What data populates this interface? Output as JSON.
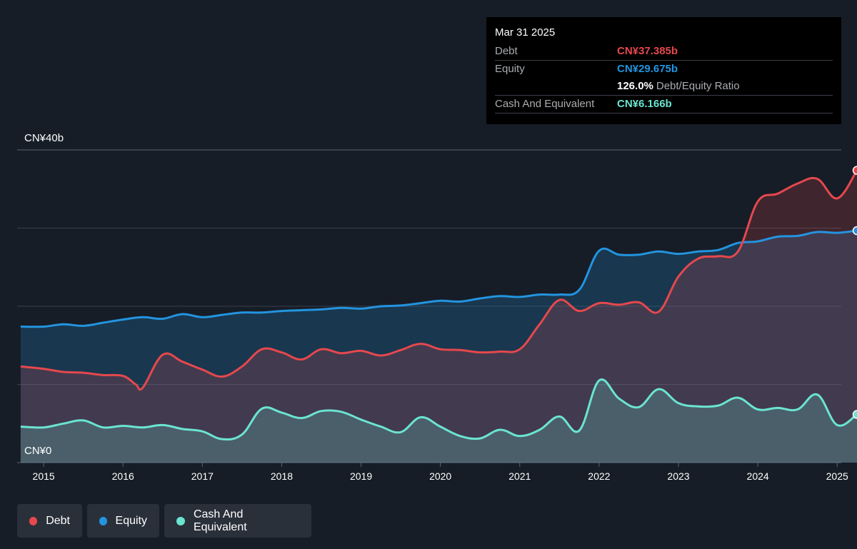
{
  "tooltip": {
    "date": "Mar 31 2025",
    "debt_label": "Debt",
    "debt_value": "CN¥37.385b",
    "equity_label": "Equity",
    "equity_value": "CN¥29.675b",
    "ratio_value": "126.0%",
    "ratio_label": "Debt/Equity Ratio",
    "cash_label": "Cash And Equivalent",
    "cash_value": "CN¥6.166b"
  },
  "legend": {
    "debt": "Debt",
    "equity": "Equity",
    "cash": "Cash And Equivalent"
  },
  "colors": {
    "debt": "#e5484d",
    "equity": "#2394df",
    "cash": "#6be4d0"
  },
  "chart_data": {
    "type": "area",
    "y_top_label": "CN¥40b",
    "y_bottom_label": "CN¥0",
    "ylim": [
      0,
      40
    ],
    "xlim": [
      2014.45,
      2025.25
    ],
    "x_ticks": [
      "2015",
      "2016",
      "2017",
      "2018",
      "2019",
      "2020",
      "2021",
      "2022",
      "2023",
      "2024",
      "2025"
    ],
    "gridlines": [
      0,
      10,
      20,
      30,
      40
    ],
    "series": [
      {
        "name": "Debt",
        "x": [
          2014.71,
          2015.0,
          2015.25,
          2015.5,
          2015.75,
          2016.0,
          2016.16,
          2016.25,
          2016.5,
          2016.75,
          2017.0,
          2017.25,
          2017.5,
          2017.75,
          2018.0,
          2018.25,
          2018.5,
          2018.75,
          2019.0,
          2019.25,
          2019.5,
          2019.75,
          2020.0,
          2020.25,
          2020.5,
          2020.75,
          2021.0,
          2021.25,
          2021.5,
          2021.75,
          2022.0,
          2022.25,
          2022.5,
          2022.75,
          2023.0,
          2023.25,
          2023.5,
          2023.75,
          2024.0,
          2024.25,
          2024.5,
          2024.75,
          2025.0,
          2025.25
        ],
        "values": [
          12.3,
          12.0,
          11.6,
          11.5,
          11.2,
          11.1,
          10.0,
          9.6,
          13.8,
          12.9,
          11.9,
          11.0,
          12.3,
          14.5,
          14.1,
          13.2,
          14.5,
          14.0,
          14.3,
          13.7,
          14.4,
          15.2,
          14.5,
          14.4,
          14.1,
          14.2,
          14.5,
          17.7,
          20.8,
          19.4,
          20.4,
          20.2,
          20.5,
          19.3,
          23.8,
          26.1,
          26.4,
          27.0,
          33.4,
          34.4,
          35.7,
          36.3,
          33.8,
          37.385
        ]
      },
      {
        "name": "Equity",
        "x": [
          2014.71,
          2015.0,
          2015.25,
          2015.5,
          2015.75,
          2016.0,
          2016.25,
          2016.5,
          2016.75,
          2017.0,
          2017.25,
          2017.5,
          2017.75,
          2018.0,
          2018.25,
          2018.5,
          2018.75,
          2019.0,
          2019.25,
          2019.5,
          2019.75,
          2020.0,
          2020.25,
          2020.5,
          2020.75,
          2021.0,
          2021.25,
          2021.5,
          2021.75,
          2022.0,
          2022.25,
          2022.5,
          2022.75,
          2023.0,
          2023.25,
          2023.5,
          2023.75,
          2024.0,
          2024.25,
          2024.5,
          2024.75,
          2025.0,
          2025.25
        ],
        "values": [
          17.4,
          17.4,
          17.7,
          17.5,
          17.9,
          18.3,
          18.6,
          18.4,
          19.0,
          18.6,
          18.9,
          19.2,
          19.2,
          19.4,
          19.5,
          19.6,
          19.8,
          19.7,
          20.0,
          20.1,
          20.4,
          20.7,
          20.6,
          21.0,
          21.3,
          21.2,
          21.5,
          21.5,
          22.1,
          27.1,
          26.6,
          26.6,
          27.0,
          26.7,
          27.0,
          27.2,
          28.1,
          28.3,
          28.9,
          29.0,
          29.5,
          29.4,
          29.675
        ]
      },
      {
        "name": "Cash And Equivalent",
        "x": [
          2014.71,
          2015.0,
          2015.25,
          2015.5,
          2015.75,
          2016.0,
          2016.25,
          2016.5,
          2016.75,
          2017.0,
          2017.25,
          2017.5,
          2017.75,
          2018.0,
          2018.25,
          2018.5,
          2018.75,
          2019.0,
          2019.25,
          2019.5,
          2019.75,
          2020.0,
          2020.25,
          2020.5,
          2020.75,
          2021.0,
          2021.25,
          2021.5,
          2021.75,
          2022.0,
          2022.25,
          2022.5,
          2022.75,
          2023.0,
          2023.25,
          2023.5,
          2023.75,
          2024.0,
          2024.25,
          2024.5,
          2024.75,
          2025.0,
          2025.25
        ],
        "values": [
          4.6,
          4.5,
          5.0,
          5.4,
          4.5,
          4.7,
          4.5,
          4.8,
          4.3,
          4.0,
          3.0,
          3.6,
          6.9,
          6.4,
          5.7,
          6.6,
          6.5,
          5.5,
          4.6,
          3.9,
          5.8,
          4.6,
          3.4,
          3.1,
          4.2,
          3.4,
          4.2,
          5.9,
          4.1,
          10.5,
          8.2,
          7.1,
          9.4,
          7.6,
          7.2,
          7.3,
          8.3,
          6.8,
          7.0,
          6.8,
          8.7,
          4.8,
          6.166
        ]
      }
    ]
  }
}
